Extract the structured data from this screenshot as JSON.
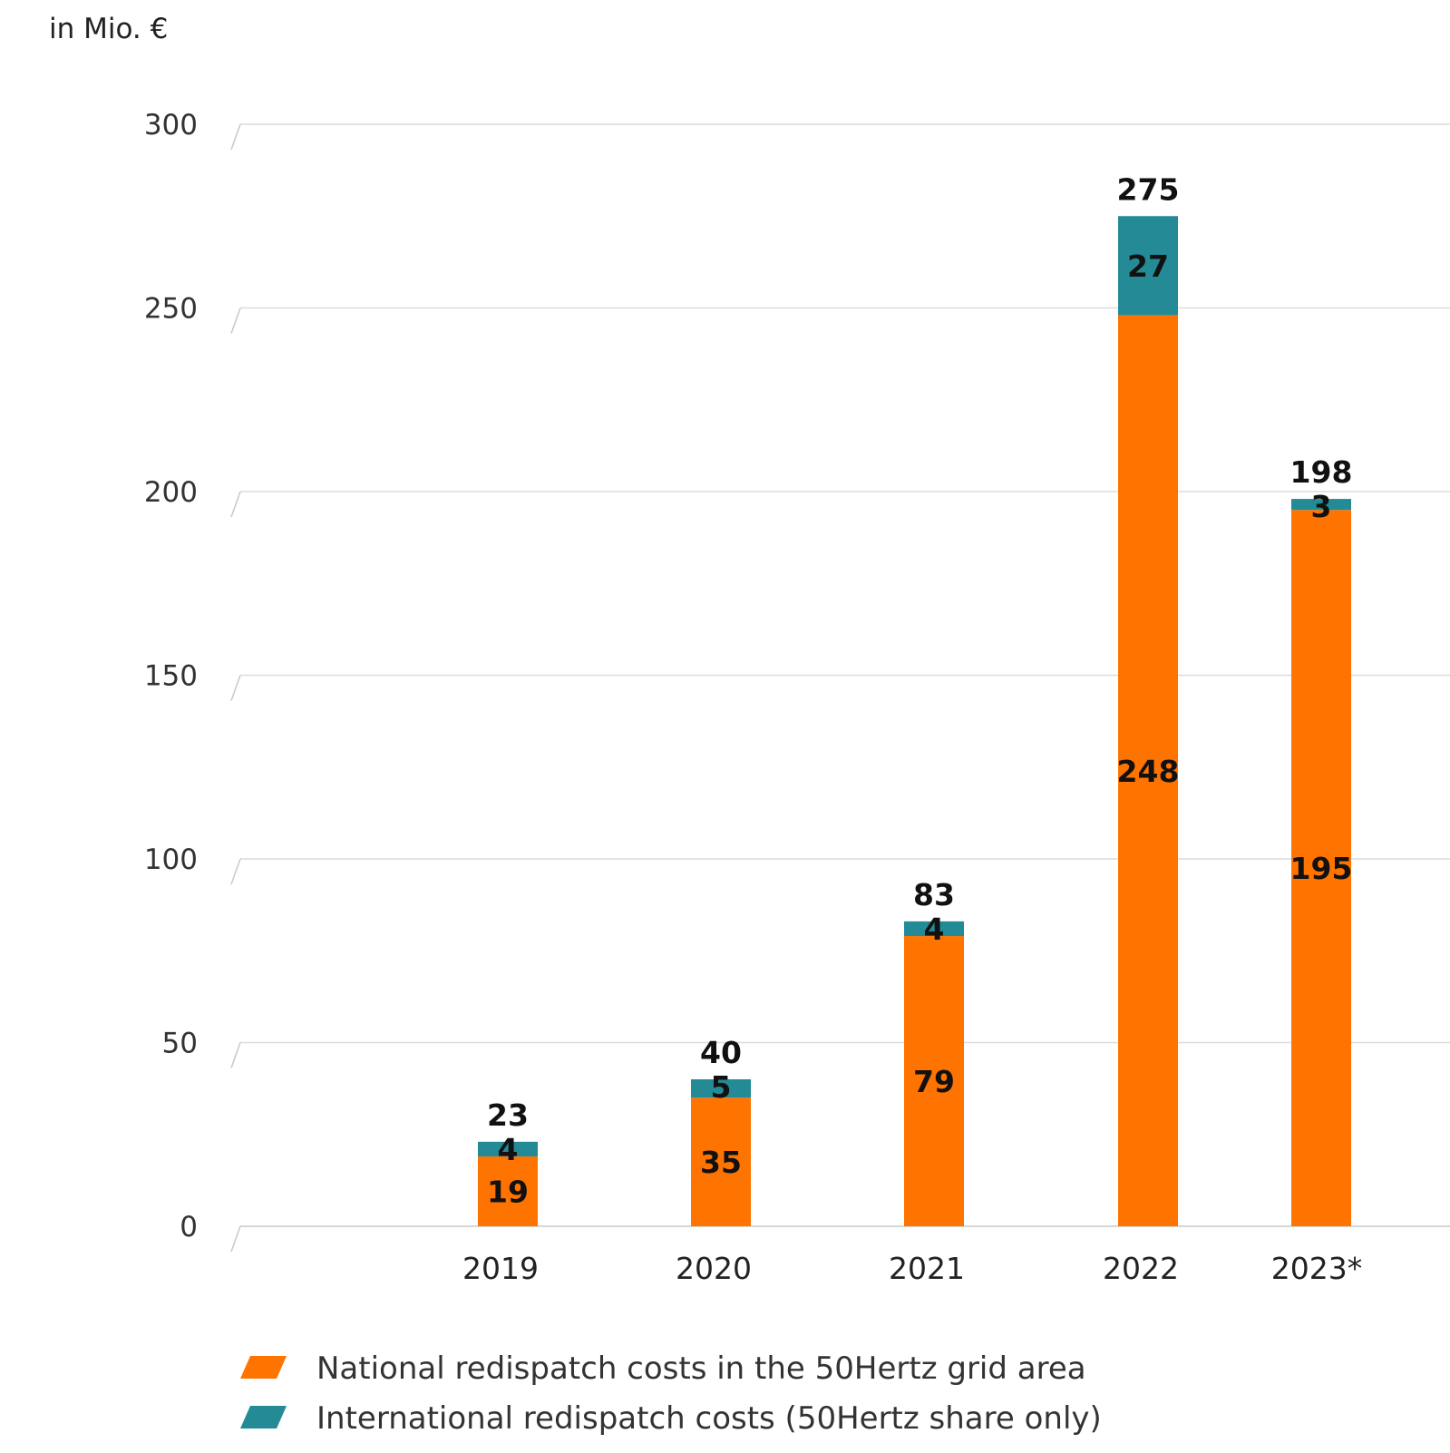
{
  "chart_data": {
    "type": "bar",
    "stacked": true,
    "unit_label": "in Mio. €",
    "categories": [
      "2019",
      "2020",
      "2021",
      "2022",
      "2023*"
    ],
    "series": [
      {
        "name": "National redispatch costs in the 50Hertz grid area",
        "color": "#ff7300",
        "values": [
          19,
          35,
          79,
          248,
          195
        ]
      },
      {
        "name": "International redispatch costs (50Hertz share only)",
        "color": "#238a96",
        "values": [
          4,
          5,
          4,
          27,
          3
        ]
      }
    ],
    "totals": [
      23,
      40,
      83,
      275,
      198
    ],
    "yticks": [
      0,
      50,
      100,
      150,
      200,
      250,
      300
    ],
    "ylim": [
      0,
      300
    ],
    "grid": true,
    "legend_position": "bottom-left"
  }
}
